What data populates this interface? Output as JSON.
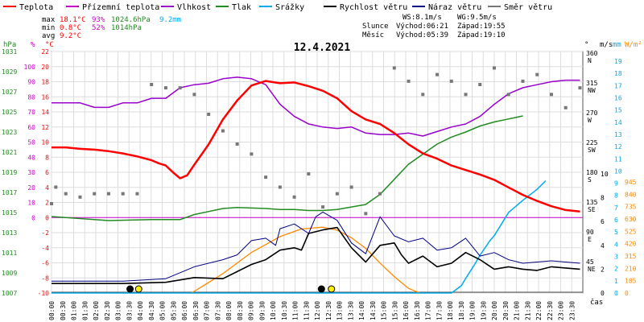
{
  "chart_data": {
    "type": "line",
    "title": "12.4.2021",
    "legend": {
      "position": "top-left",
      "items": [
        {
          "label": "Teplota",
          "color": "#ff0000"
        },
        {
          "label": "Přízemní teplota",
          "color": "#cc00cc"
        },
        {
          "label": "Vlhkost",
          "color": "#9900cc"
        },
        {
          "label": "Tlak",
          "color": "#228b22"
        },
        {
          "label": "Srážky",
          "color": "#00aaee"
        },
        {
          "label": "Rychlost větru",
          "color": "#000000"
        },
        {
          "label": "Náraz větru",
          "color": "#000080"
        },
        {
          "label": "Směr větru",
          "color": "#777777"
        }
      ]
    },
    "stats": {
      "max": {
        "label": "max",
        "temp": "18.1°C",
        "hum": "93%",
        "press": "1024.6hPa",
        "rain": "9.2mm"
      },
      "min": {
        "label": "min",
        "temp": "0.8°C",
        "hum": "52%",
        "press": "1014hPa"
      },
      "avg": {
        "label": "avg",
        "temp": "9.2°C"
      }
    },
    "info": {
      "ws": "WS:8.1m/s",
      "wg": "WG:9.5m/s",
      "sun_label": "Slunce",
      "sun_rise": "Východ:06:21",
      "sun_set": "Západ:19:55",
      "moon_label": "Měsíc",
      "moon_rise": "Východ:05:39",
      "moon_set": "Západ:19:10"
    },
    "axes": {
      "hpa": {
        "unit": "hPa",
        "ticks": [
          "1031",
          "1029",
          "1027",
          "1025",
          "1023",
          "1021",
          "1019",
          "1017",
          "1015",
          "1013",
          "1011",
          "1009",
          "1007"
        ],
        "color": "#228b22"
      },
      "percent": {
        "unit": "%",
        "ticks": [
          "100",
          "90",
          "80",
          "70",
          "60",
          "50",
          "40",
          "30",
          "20",
          "10",
          "0"
        ],
        "color": "#cc00cc"
      },
      "celsius": {
        "unit": "°C",
        "ticks": [
          "22",
          "20",
          "18",
          "16",
          "14",
          "12",
          "10",
          "8",
          "6",
          "4",
          "2",
          "0",
          "-2",
          "-4",
          "-6",
          "-8",
          "-10"
        ],
        "color": "#ff0000"
      },
      "direction": {
        "unit": "°",
        "ticks": [
          "360",
          "315",
          "270",
          "225",
          "180",
          "135",
          "90",
          "45"
        ],
        "labels": [
          "N",
          "NW",
          "W",
          "SW",
          "S",
          "SE",
          "E",
          "NE"
        ]
      },
      "ms": {
        "unit": "m/s",
        "ticks": [
          "10",
          "8",
          "6",
          "4",
          "2",
          "0"
        ]
      },
      "mm": {
        "unit": "mm",
        "ticks": [
          "19",
          "18",
          "17",
          "16",
          "15",
          "14",
          "13",
          "12",
          "11",
          "10",
          "9",
          "8",
          "7",
          "6",
          "5",
          "4",
          "3",
          "2",
          "1",
          "0"
        ],
        "color": "#00aaee"
      },
      "wm2": {
        "unit": "W/m²",
        "ticks": [
          "945",
          "840",
          "735",
          "630",
          "525",
          "420",
          "315",
          "210",
          "105",
          "0"
        ],
        "color": "#ff8800"
      },
      "time": {
        "label": "čas",
        "ticks": [
          "00:00",
          "00:30",
          "01:00",
          "01:30",
          "02:00",
          "02:30",
          "03:00",
          "03:30",
          "04:00",
          "04:30",
          "05:00",
          "05:30",
          "06:00",
          "06:30",
          "07:00",
          "07:30",
          "08:00",
          "08:30",
          "09:00",
          "09:30",
          "10:00",
          "10:30",
          "11:00",
          "11:30",
          "12:00",
          "12:30",
          "13:00",
          "13:30",
          "14:00",
          "14:30",
          "15:00",
          "15:30",
          "16:00",
          "16:30",
          "17:00",
          "17:30",
          "18:00",
          "18:30",
          "19:00",
          "19:30",
          "20:00",
          "20:30",
          "21:00",
          "21:30",
          "22:00",
          "22:30",
          "23:00",
          "23:30"
        ]
      }
    },
    "temperature_c": [
      [
        0,
        9.3
      ],
      [
        1,
        9.3
      ],
      [
        2,
        9.1
      ],
      [
        3,
        9.0
      ],
      [
        4,
        8.8
      ],
      [
        5,
        8.5
      ],
      [
        6,
        8.1
      ],
      [
        7,
        7.6
      ],
      [
        7.5,
        7.2
      ],
      [
        8,
        6.9
      ],
      [
        8.5,
        6.0
      ],
      [
        9,
        5.2
      ],
      [
        9.5,
        5.6
      ],
      [
        10,
        7.0
      ],
      [
        11,
        9.7
      ],
      [
        12,
        13.0
      ],
      [
        13,
        15.5
      ],
      [
        14,
        17.5
      ],
      [
        15,
        18.1
      ],
      [
        16,
        17.8
      ],
      [
        17,
        17.9
      ],
      [
        18,
        17.4
      ],
      [
        19,
        16.8
      ],
      [
        20,
        15.8
      ],
      [
        21,
        14.1
      ],
      [
        22,
        13.0
      ],
      [
        23,
        12.4
      ],
      [
        24,
        11.2
      ],
      [
        25,
        9.7
      ],
      [
        26,
        8.5
      ],
      [
        27,
        7.8
      ],
      [
        28,
        6.9
      ],
      [
        29,
        6.3
      ],
      [
        30,
        5.7
      ],
      [
        31,
        5.0
      ],
      [
        32,
        4.0
      ],
      [
        33,
        3.0
      ],
      [
        34,
        2.2
      ],
      [
        35,
        1.5
      ],
      [
        36,
        1.0
      ],
      [
        37,
        0.8
      ]
    ],
    "humidity_pct": [
      [
        0,
        76
      ],
      [
        2,
        76
      ],
      [
        3,
        73
      ],
      [
        4,
        73
      ],
      [
        5,
        76
      ],
      [
        6,
        76
      ],
      [
        7,
        79
      ],
      [
        8,
        79
      ],
      [
        9,
        86
      ],
      [
        10,
        88
      ],
      [
        11,
        89
      ],
      [
        12,
        92
      ],
      [
        13,
        93
      ],
      [
        14,
        92
      ],
      [
        15,
        88
      ],
      [
        16,
        75
      ],
      [
        17,
        67
      ],
      [
        18,
        62
      ],
      [
        19,
        60
      ],
      [
        20,
        59
      ],
      [
        21,
        60
      ],
      [
        22,
        56
      ],
      [
        23,
        55
      ],
      [
        24,
        55
      ],
      [
        25,
        56
      ],
      [
        26,
        54
      ],
      [
        27,
        57
      ],
      [
        28,
        60
      ],
      [
        29,
        62
      ],
      [
        30,
        67
      ],
      [
        31,
        75
      ],
      [
        32,
        82
      ],
      [
        33,
        86
      ],
      [
        34,
        88
      ],
      [
        35,
        90
      ],
      [
        36,
        91
      ],
      [
        37,
        91
      ]
    ],
    "pressure_hpa": [
      [
        0,
        1014.6
      ],
      [
        4,
        1014.2
      ],
      [
        7,
        1014.3
      ],
      [
        9,
        1014.3
      ],
      [
        10,
        1014.8
      ],
      [
        12,
        1015.4
      ],
      [
        13,
        1015.5
      ],
      [
        15,
        1015.4
      ],
      [
        16,
        1015.3
      ],
      [
        17,
        1015.3
      ],
      [
        18,
        1015.2
      ],
      [
        19,
        1015.2
      ],
      [
        20,
        1015.3
      ],
      [
        22,
        1015.8
      ],
      [
        23,
        1016.8
      ],
      [
        24,
        1018.3
      ],
      [
        25,
        1019.8
      ],
      [
        26,
        1020.8
      ],
      [
        27,
        1021.8
      ],
      [
        28,
        1022.5
      ],
      [
        29,
        1023.0
      ],
      [
        30,
        1023.6
      ],
      [
        31,
        1024.0
      ],
      [
        32,
        1024.3
      ],
      [
        33,
        1024.6
      ]
    ],
    "precipitation_mm": [
      [
        0,
        0
      ],
      [
        28,
        0
      ],
      [
        28.7,
        0.6
      ],
      [
        29,
        1.2
      ],
      [
        29.6,
        2.3
      ],
      [
        30,
        3.1
      ],
      [
        30.7,
        4.3
      ],
      [
        31,
        4.7
      ],
      [
        32,
        6.6
      ],
      [
        33,
        7.6
      ],
      [
        34,
        8.5
      ],
      [
        34.6,
        9.2
      ]
    ],
    "solar_wm2": [
      [
        9.8,
        0
      ],
      [
        12,
        165
      ],
      [
        14,
        345
      ],
      [
        16,
        480
      ],
      [
        17.5,
        545
      ],
      [
        19,
        560
      ],
      [
        20,
        535
      ],
      [
        21,
        470
      ],
      [
        22,
        380
      ],
      [
        23,
        255
      ],
      [
        24,
        140
      ],
      [
        25,
        40
      ],
      [
        25.8,
        0
      ]
    ],
    "wind_speed_ms": [
      [
        0,
        0.8
      ],
      [
        5,
        0.8
      ],
      [
        8,
        0.9
      ],
      [
        10,
        1.3
      ],
      [
        12,
        1.2
      ],
      [
        13,
        1.8
      ],
      [
        14,
        2.4
      ],
      [
        15,
        2.8
      ],
      [
        16,
        3.6
      ],
      [
        17,
        3.8
      ],
      [
        17.5,
        3.6
      ],
      [
        18,
        5.0
      ],
      [
        19,
        5.3
      ],
      [
        20,
        5.5
      ],
      [
        21,
        3.8
      ],
      [
        22,
        2.6
      ],
      [
        23,
        4.0
      ],
      [
        24,
        4.2
      ],
      [
        24.5,
        3.2
      ],
      [
        25,
        2.5
      ],
      [
        26,
        3.1
      ],
      [
        27,
        2.2
      ],
      [
        28,
        2.5
      ],
      [
        29,
        3.4
      ],
      [
        30,
        2.8
      ],
      [
        31,
        2.0
      ],
      [
        32,
        2.2
      ],
      [
        33,
        2.0
      ],
      [
        34,
        1.9
      ],
      [
        35,
        2.2
      ],
      [
        36,
        2.1
      ],
      [
        37,
        2.0
      ]
    ],
    "wind_gust_ms": [
      [
        0,
        1.0
      ],
      [
        5,
        1.0
      ],
      [
        8,
        1.2
      ],
      [
        10,
        2.2
      ],
      [
        12,
        2.8
      ],
      [
        13,
        3.2
      ],
      [
        14,
        4.4
      ],
      [
        15,
        4.6
      ],
      [
        15.7,
        4.0
      ],
      [
        16,
        5.4
      ],
      [
        17,
        5.8
      ],
      [
        18,
        5.0
      ],
      [
        18.5,
        6.4
      ],
      [
        19,
        6.8
      ],
      [
        20,
        6.1
      ],
      [
        21,
        4.2
      ],
      [
        22,
        3.3
      ],
      [
        23,
        6.4
      ],
      [
        24,
        4.8
      ],
      [
        25,
        4.3
      ],
      [
        26,
        4.6
      ],
      [
        27,
        3.6
      ],
      [
        28,
        3.8
      ],
      [
        29,
        4.6
      ],
      [
        30,
        3.1
      ],
      [
        31,
        3.4
      ],
      [
        32,
        2.8
      ],
      [
        33,
        2.5
      ],
      [
        34,
        2.6
      ],
      [
        35,
        2.7
      ],
      [
        36,
        2.6
      ],
      [
        37,
        2.5
      ]
    ],
    "wind_direction_deg": [
      [
        0,
        135
      ],
      [
        0.3,
        160
      ],
      [
        1,
        150
      ],
      [
        2,
        145
      ],
      [
        3,
        150
      ],
      [
        4,
        150
      ],
      [
        5,
        150
      ],
      [
        6,
        150
      ],
      [
        7,
        315
      ],
      [
        8,
        310
      ],
      [
        9,
        310
      ],
      [
        10,
        300
      ],
      [
        11,
        270
      ],
      [
        12,
        245
      ],
      [
        13,
        225
      ],
      [
        14,
        210
      ],
      [
        15,
        175
      ],
      [
        16,
        160
      ],
      [
        17,
        145
      ],
      [
        18,
        180
      ],
      [
        19,
        130
      ],
      [
        20,
        150
      ],
      [
        21,
        160
      ],
      [
        22,
        120
      ],
      [
        23,
        150
      ],
      [
        24,
        340
      ],
      [
        25,
        320
      ],
      [
        26,
        300
      ],
      [
        27,
        330
      ],
      [
        28,
        320
      ],
      [
        29,
        300
      ],
      [
        30,
        315
      ],
      [
        31,
        340
      ],
      [
        32,
        300
      ],
      [
        33,
        320
      ],
      [
        34,
        330
      ],
      [
        35,
        300
      ],
      [
        36,
        280
      ],
      [
        37,
        310
      ]
    ],
    "marker": {
      "color": "#ffee00"
    }
  }
}
